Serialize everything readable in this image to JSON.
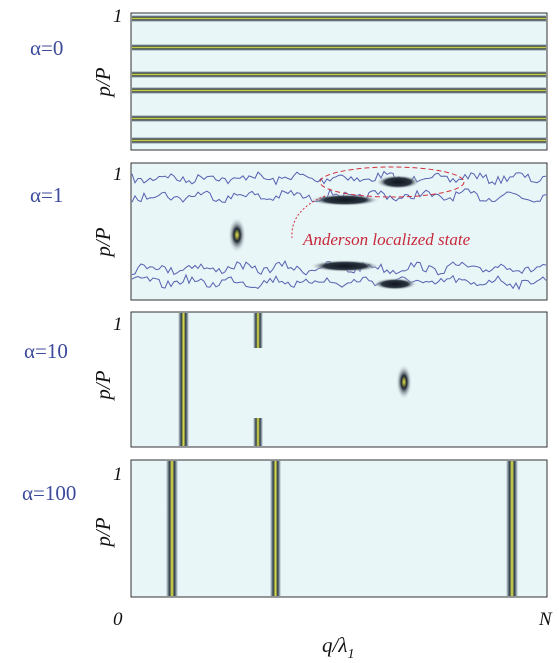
{
  "panels": [
    {
      "label": "α=0",
      "tick": "1",
      "y_label": "p/P"
    },
    {
      "label": "α=1",
      "tick": "1",
      "y_label": "p/P",
      "annotation": "Anderson localized state"
    },
    {
      "label": "α=10",
      "tick": "1",
      "y_label": "p/P"
    },
    {
      "label": "α=100",
      "tick": "1",
      "y_label": "p/P"
    }
  ],
  "x_axis": {
    "start": "0",
    "end": "N",
    "label": "q/λ",
    "label_sub": "1"
  }
}
